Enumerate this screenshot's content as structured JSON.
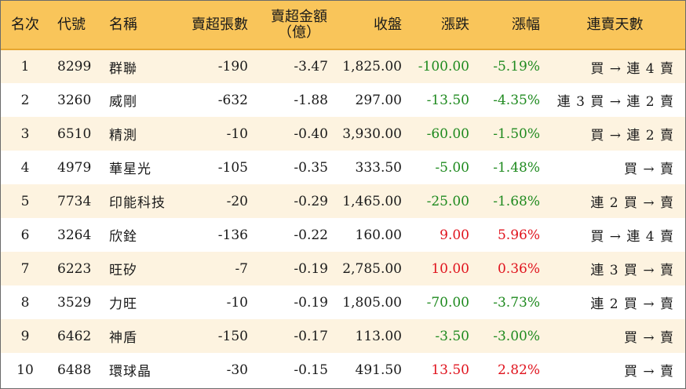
{
  "colors": {
    "header_bg": "#f9c55a",
    "row_alt_bg": "#fdf3e0",
    "up": "#e0141e",
    "down": "#1f8a1f"
  },
  "headers": {
    "rank": "名次",
    "code": "代號",
    "name": "名稱",
    "lots": "賣超張數",
    "amount_line1": "賣超金額",
    "amount_line2": "（億）",
    "close": "收盤",
    "change": "漲跌",
    "change_pct": "漲幅",
    "streak": "連賣天數"
  },
  "rows": [
    {
      "rank": "1",
      "code": "8299",
      "name": "群聯",
      "lots": "-190",
      "amount": "-3.47",
      "close": "1,825.00",
      "change": "-100.00",
      "change_pct": "-5.19%",
      "direction": "down",
      "streak": "買 → 連 4 賣"
    },
    {
      "rank": "2",
      "code": "3260",
      "name": "威剛",
      "lots": "-632",
      "amount": "-1.88",
      "close": "297.00",
      "change": "-13.50",
      "change_pct": "-4.35%",
      "direction": "down",
      "streak": "連 3 買 → 連 2 賣"
    },
    {
      "rank": "3",
      "code": "6510",
      "name": "精測",
      "lots": "-10",
      "amount": "-0.40",
      "close": "3,930.00",
      "change": "-60.00",
      "change_pct": "-1.50%",
      "direction": "down",
      "streak": "買 → 連 2 賣"
    },
    {
      "rank": "4",
      "code": "4979",
      "name": "華星光",
      "lots": "-105",
      "amount": "-0.35",
      "close": "333.50",
      "change": "-5.00",
      "change_pct": "-1.48%",
      "direction": "down",
      "streak": "買 → 賣"
    },
    {
      "rank": "5",
      "code": "7734",
      "name": "印能科技",
      "lots": "-20",
      "amount": "-0.29",
      "close": "1,465.00",
      "change": "-25.00",
      "change_pct": "-1.68%",
      "direction": "down",
      "streak": "連 2 買 → 賣"
    },
    {
      "rank": "6",
      "code": "3264",
      "name": "欣銓",
      "lots": "-136",
      "amount": "-0.22",
      "close": "160.00",
      "change": "9.00",
      "change_pct": "5.96%",
      "direction": "up",
      "streak": "買 → 連 4 賣"
    },
    {
      "rank": "7",
      "code": "6223",
      "name": "旺矽",
      "lots": "-7",
      "amount": "-0.19",
      "close": "2,785.00",
      "change": "10.00",
      "change_pct": "0.36%",
      "direction": "up",
      "streak": "連 3 買 → 賣"
    },
    {
      "rank": "8",
      "code": "3529",
      "name": "力旺",
      "lots": "-10",
      "amount": "-0.19",
      "close": "1,805.00",
      "change": "-70.00",
      "change_pct": "-3.73%",
      "direction": "down",
      "streak": "連 2 買 → 賣"
    },
    {
      "rank": "9",
      "code": "6462",
      "name": "神盾",
      "lots": "-150",
      "amount": "-0.17",
      "close": "113.00",
      "change": "-3.50",
      "change_pct": "-3.00%",
      "direction": "down",
      "streak": "買 → 賣"
    },
    {
      "rank": "10",
      "code": "6488",
      "name": "環球晶",
      "lots": "-30",
      "amount": "-0.15",
      "close": "491.50",
      "change": "13.50",
      "change_pct": "2.82%",
      "direction": "up",
      "streak": "買 → 賣"
    }
  ]
}
